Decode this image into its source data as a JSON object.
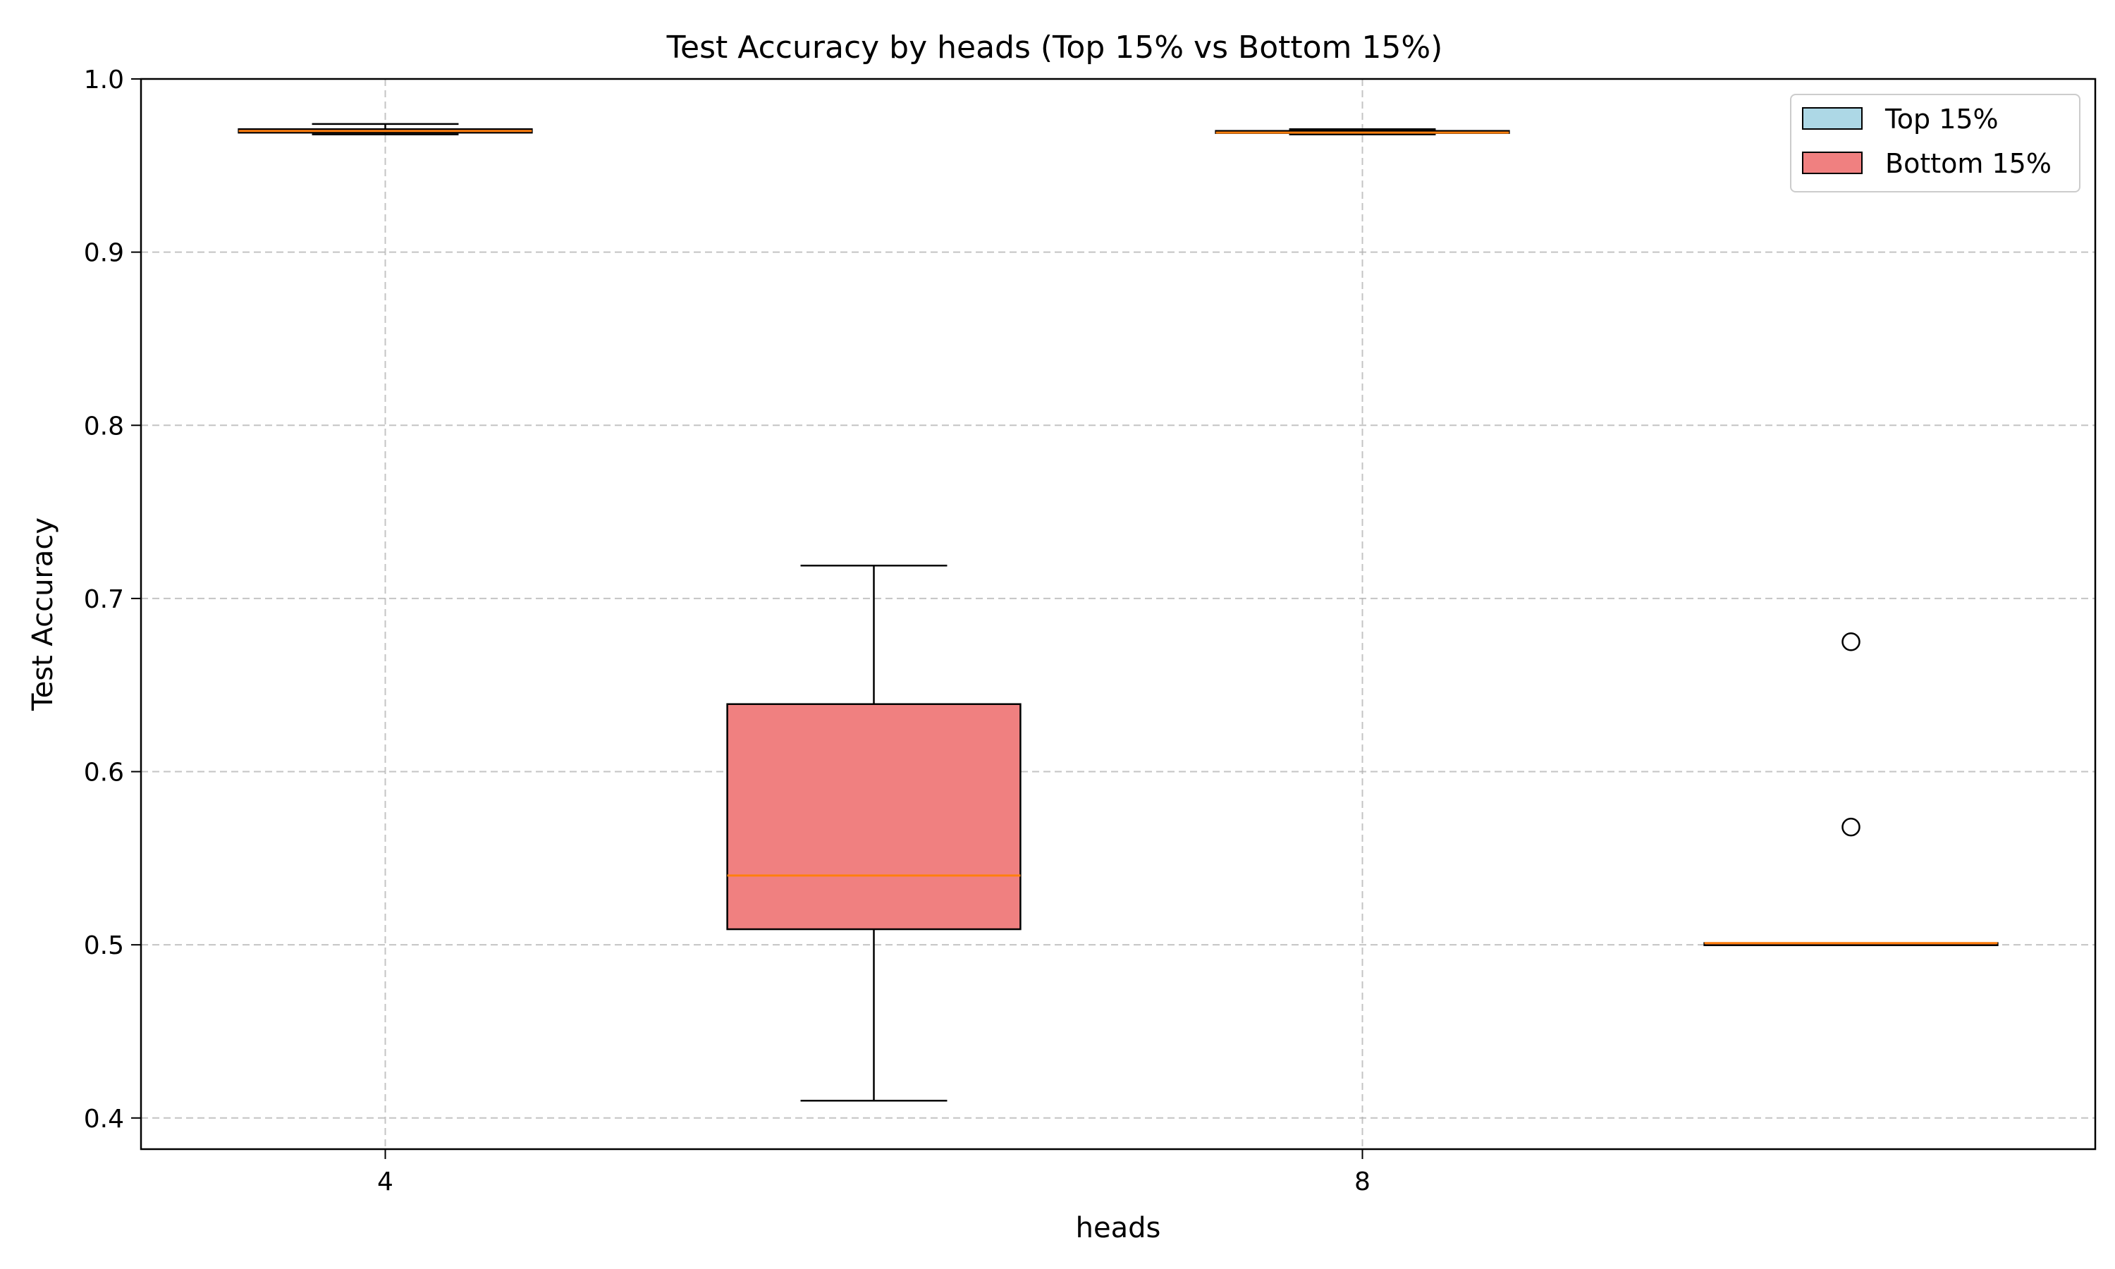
{
  "chart_data": {
    "type": "box",
    "title": "Test Accuracy by heads (Top 15% vs Bottom 15%)",
    "xlabel": "heads",
    "ylabel": "Test Accuracy",
    "ylim": [
      0.382,
      1.0
    ],
    "x_ticks": [
      {
        "label": "4",
        "pos": 1
      },
      {
        "label": "8",
        "pos": 3
      }
    ],
    "xlim": [
      0.5,
      4.5
    ],
    "y_ticks": [
      "0.4",
      "0.5",
      "0.6",
      "0.7",
      "0.8",
      "0.9",
      "1.0"
    ],
    "grid": true,
    "legend_position": "upper right",
    "series": [
      {
        "name": "Top 15%",
        "color": "#add8e6",
        "boxes": [
          {
            "heads": "4",
            "pos": 1,
            "whislo": 0.968,
            "q1": 0.969,
            "med": 0.97,
            "q3": 0.971,
            "whishi": 0.974,
            "fliers": []
          },
          {
            "heads": "8",
            "pos": 3,
            "whislo": 0.968,
            "q1": 0.969,
            "med": 0.969,
            "q3": 0.97,
            "whishi": 0.971,
            "fliers": []
          }
        ]
      },
      {
        "name": "Bottom 15%",
        "color": "#f08080",
        "boxes": [
          {
            "heads": "4",
            "pos": 2,
            "whislo": 0.41,
            "q1": 0.509,
            "med": 0.54,
            "q3": 0.639,
            "whishi": 0.719,
            "fliers": []
          },
          {
            "heads": "8",
            "pos": 4,
            "whislo": 0.5,
            "q1": 0.5,
            "med": 0.501,
            "q3": 0.501,
            "whishi": 0.501,
            "fliers": [
              0.568,
              0.675
            ]
          }
        ]
      }
    ],
    "median_color": "#ff7f0e"
  }
}
